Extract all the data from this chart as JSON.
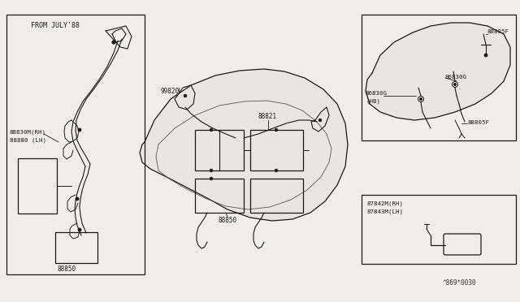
{
  "bg_color": "#f0eeea",
  "line_color": "#1a1a1a",
  "box_color": "#1a1a1a",
  "text_color": "#1a1a1a",
  "fig_width": 6.4,
  "fig_height": 3.72,
  "diagram_ref": "^869*0030",
  "labels": {
    "from_july88": "FROM JULY'88",
    "lh_label_1": "88830M(RH)",
    "lh_label_2": "88880 (LH)",
    "part_88850_left": "88850",
    "part_99820": "99820",
    "part_88821": "88821",
    "part_88850_center": "88850",
    "part_86830g_hb_1": "86830G",
    "part_86830g_hb_2": "(HB)",
    "part_86830g": "86830G",
    "part_88805f_top": "88805F",
    "part_88805f_bot": "88805F",
    "part_87842m_1": "87842M(RH)",
    "part_87842m_2": "87843M(LH)"
  }
}
